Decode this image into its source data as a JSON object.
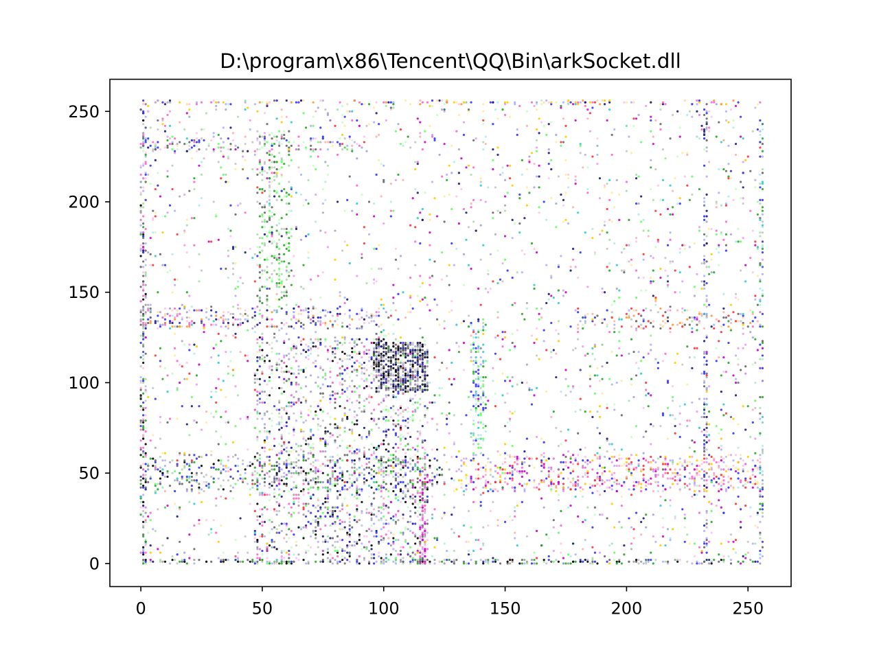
{
  "chart_data": {
    "type": "scatter",
    "title": "D:\\program\\x86\\Tencent\\QQ\\Bin\\arkSocket.dll",
    "xlabel": "",
    "ylabel": "",
    "xlim": [
      -12.75,
      267.75
    ],
    "ylim": [
      -12.75,
      267.75
    ],
    "xticks": [
      0,
      50,
      100,
      150,
      200,
      250
    ],
    "yticks": [
      0,
      50,
      100,
      150,
      200,
      250
    ],
    "grid": false,
    "legend": "none",
    "marker_colors": [
      "#000000",
      "#1a1a80",
      "#3333ff",
      "#cc00cc",
      "#ff66cc",
      "#ff3333",
      "#22aa22",
      "#66ff66",
      "#33cccc",
      "#ffcc00",
      "#ff9933",
      "#666666"
    ],
    "dense_regions": [
      {
        "x": [
          0,
          2
        ],
        "y": [
          0,
          255
        ],
        "count": 260,
        "colors": [
          0,
          2,
          11,
          6,
          4
        ]
      },
      {
        "x": [
          0,
          255
        ],
        "y": [
          0,
          2
        ],
        "count": 260,
        "colors": [
          0,
          6,
          11,
          2
        ]
      },
      {
        "x": [
          0,
          255
        ],
        "y": [
          254,
          256
        ],
        "count": 140,
        "colors": [
          4,
          9,
          1,
          10,
          2
        ]
      },
      {
        "x": [
          232,
          233
        ],
        "y": [
          0,
          255
        ],
        "count": 140,
        "colors": [
          11,
          1,
          2
        ]
      },
      {
        "x": [
          255,
          256
        ],
        "y": [
          0,
          255
        ],
        "count": 120,
        "colors": [
          2,
          8,
          11,
          6
        ]
      },
      {
        "x": [
          47,
          118
        ],
        "y": [
          0,
          125
        ],
        "count": 1500,
        "colors": [
          0,
          11,
          1,
          7,
          4,
          2
        ]
      },
      {
        "x": [
          96,
          118
        ],
        "y": [
          95,
          122
        ],
        "count": 500,
        "colors": [
          0,
          11,
          1
        ]
      },
      {
        "x": [
          48,
          62
        ],
        "y": [
          140,
          240
        ],
        "count": 260,
        "colors": [
          7,
          6,
          11
        ]
      },
      {
        "x": [
          0,
          100
        ],
        "y": [
          130,
          141
        ],
        "count": 260,
        "colors": [
          2,
          4,
          11,
          1,
          10
        ]
      },
      {
        "x": [
          0,
          90
        ],
        "y": [
          228,
          236
        ],
        "count": 140,
        "colors": [
          2,
          4,
          7,
          11
        ]
      },
      {
        "x": [
          115,
          118
        ],
        "y": [
          0,
          50
        ],
        "count": 120,
        "colors": [
          3,
          11,
          4
        ]
      },
      {
        "x": [
          136,
          142
        ],
        "y": [
          60,
          135
        ],
        "count": 130,
        "colors": [
          6,
          2,
          8,
          7
        ]
      },
      {
        "x": [
          130,
          256
        ],
        "y": [
          40,
          60
        ],
        "count": 600,
        "colors": [
          4,
          3,
          5,
          9,
          2
        ]
      },
      {
        "x": [
          180,
          256
        ],
        "y": [
          130,
          141
        ],
        "count": 120,
        "colors": [
          5,
          10,
          2,
          11
        ]
      },
      {
        "x": [
          0,
          125
        ],
        "y": [
          40,
          60
        ],
        "count": 400,
        "colors": [
          0,
          11,
          2,
          6
        ]
      },
      {
        "x": [
          0,
          256
        ],
        "y": [
          0,
          256
        ],
        "count": 2600,
        "colors": [
          2,
          4,
          3,
          8,
          7,
          6,
          11,
          9,
          1,
          5
        ]
      }
    ]
  }
}
